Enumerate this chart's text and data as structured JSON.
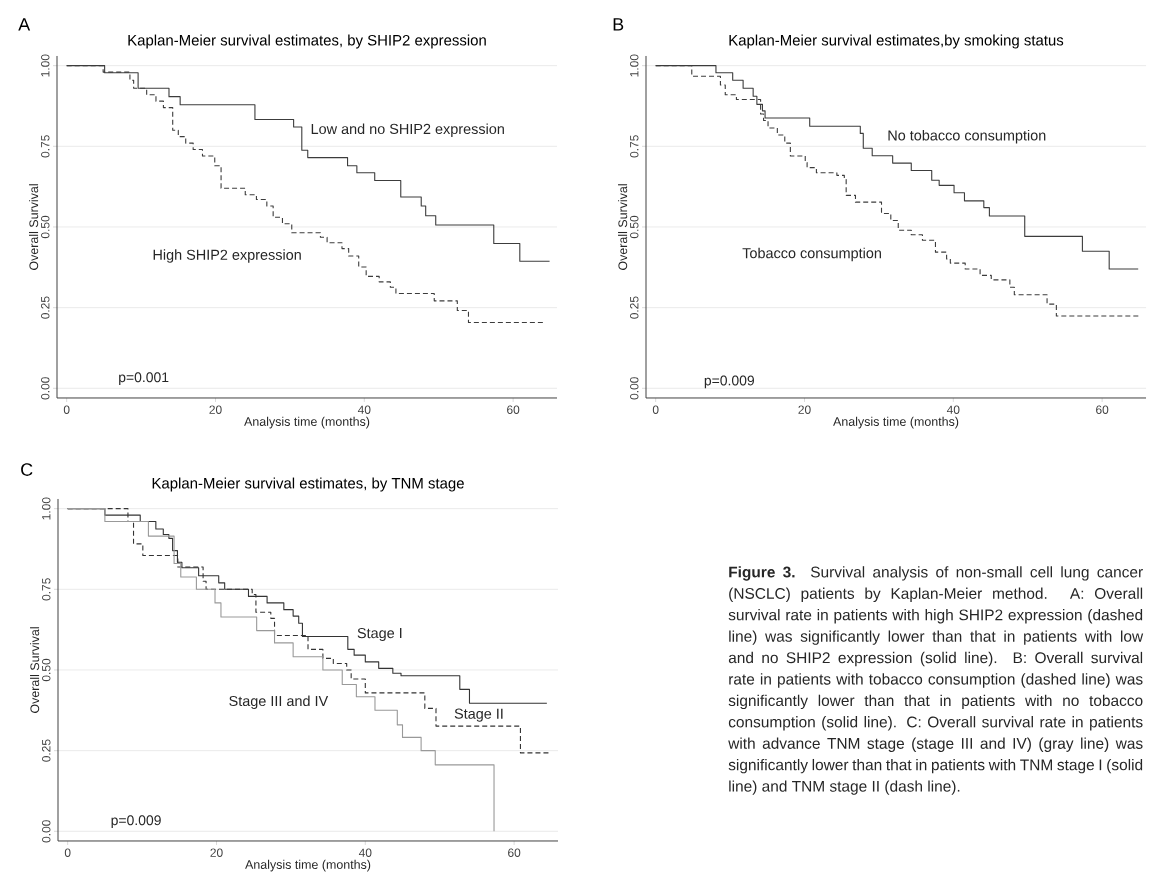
{
  "chart_data": [
    {
      "type": "step",
      "title": "Kaplan-Meier survival estimates, by SHIP2 expression",
      "xlabel": "Analysis time (months)",
      "ylabel": "Overall Survival",
      "xlim": [
        -1.3,
        65.9
      ],
      "ylim": [
        -0.03,
        1.03
      ],
      "xticks": [
        0,
        20,
        40,
        60
      ],
      "yticks": [
        {
          "value": 0,
          "label": "0.00"
        },
        {
          "value": 0.25,
          "label": "0.25"
        },
        {
          "value": 0.5,
          "label": "0.50"
        },
        {
          "value": 0.75,
          "label": "0.75"
        },
        {
          "value": 1,
          "label": "1.00"
        }
      ],
      "grid": "y",
      "annotations": [
        "A",
        "p=0.001"
      ],
      "series": [
        {
          "name": "Low and no SHIP2 expression",
          "color": "#3c3c3c",
          "line_style": "solid",
          "x": [
            0,
            5.1,
            9.6,
            13.75,
            15.25,
            25.3,
            30.5,
            31.6,
            32.4,
            37.75,
            39,
            41.4,
            44.9,
            47.65,
            48.25,
            49.6,
            57.4,
            60.9,
            64.9
          ],
          "values": [
            1,
            0.978,
            0.93,
            0.904,
            0.879,
            0.833,
            0.81,
            0.738,
            0.715,
            0.69,
            0.668,
            0.644,
            0.593,
            0.565,
            0.535,
            0.506,
            0.449,
            0.394,
            0.394
          ]
        },
        {
          "name": "High SHIP2 expression",
          "color": "#3c3c3c",
          "line_style": "dashed",
          "x": [
            0,
            4.9,
            8.5,
            9,
            10.75,
            12,
            13,
            14.25,
            15,
            16,
            17,
            18.25,
            19.9,
            20.75,
            24,
            25.5,
            26.9,
            27.75,
            29,
            30.25,
            34.1,
            35,
            37,
            37.9,
            39.25,
            40.25,
            42,
            43.5,
            44.25,
            49.4,
            52.5,
            54,
            64.25
          ],
          "values": [
            1,
            0.98,
            0.955,
            0.93,
            0.91,
            0.89,
            0.87,
            0.8,
            0.78,
            0.76,
            0.74,
            0.72,
            0.69,
            0.62,
            0.6,
            0.585,
            0.565,
            0.53,
            0.51,
            0.482,
            0.468,
            0.451,
            0.433,
            0.41,
            0.376,
            0.347,
            0.33,
            0.313,
            0.294,
            0.271,
            0.241,
            0.204,
            0.204
          ]
        }
      ]
    },
    {
      "type": "step",
      "title": "Kaplan-Meier survival estimates,by smoking status",
      "xlabel": "Analysis time (months)",
      "ylabel": "Overall Survival",
      "xlim": [
        -1.3,
        65.9
      ],
      "ylim": [
        -0.03,
        1.03
      ],
      "xticks": [
        0,
        20,
        40,
        60
      ],
      "yticks": [
        {
          "value": 0,
          "label": "0.00"
        },
        {
          "value": 0.25,
          "label": "0.25"
        },
        {
          "value": 0.5,
          "label": "0.50"
        },
        {
          "value": 0.75,
          "label": "0.75"
        },
        {
          "value": 1,
          "label": "1.00"
        }
      ],
      "grid": "y",
      "annotations": [
        "B",
        "p=0.009"
      ],
      "series": [
        {
          "name": "No tobacco consumption",
          "color": "#3c3c3c",
          "line_style": "solid",
          "x": [
            0,
            8.1,
            10.35,
            11.75,
            13.1,
            13.6,
            14.35,
            14.7,
            20.7,
            27.5,
            27.9,
            29.1,
            31.85,
            34.35,
            37.1,
            38.1,
            40.1,
            41.5,
            44.1,
            44.85,
            49.6,
            57.35,
            60.95,
            64.85
          ],
          "values": [
            1,
            0.978,
            0.955,
            0.93,
            0.905,
            0.88,
            0.86,
            0.838,
            0.812,
            0.79,
            0.744,
            0.721,
            0.698,
            0.675,
            0.645,
            0.629,
            0.606,
            0.581,
            0.56,
            0.534,
            0.471,
            0.425,
            0.37,
            0.37
          ]
        },
        {
          "name": "Tobacco consumption",
          "color": "#3c3c3c",
          "line_style": "dashed",
          "x": [
            0,
            4.85,
            8.7,
            9.35,
            10.85,
            14.1,
            14.5,
            15.1,
            16.35,
            17.35,
            18.1,
            20.1,
            20.35,
            21.6,
            24.35,
            25.35,
            25.6,
            26.85,
            30.35,
            31.6,
            32.6,
            34.35,
            35.85,
            37.6,
            39.1,
            39.6,
            41.6,
            43.6,
            45.1,
            47.6,
            48.2,
            52.6,
            53.85,
            65.1
          ],
          "values": [
            1,
            0.967,
            0.94,
            0.91,
            0.895,
            0.85,
            0.83,
            0.807,
            0.785,
            0.76,
            0.72,
            0.7,
            0.684,
            0.668,
            0.66,
            0.647,
            0.598,
            0.577,
            0.542,
            0.52,
            0.49,
            0.476,
            0.459,
            0.422,
            0.401,
            0.388,
            0.37,
            0.35,
            0.336,
            0.313,
            0.29,
            0.261,
            0.224,
            0.224
          ]
        }
      ]
    },
    {
      "type": "step",
      "title": "Kaplan-Meier survival estimates, by TNM stage",
      "xlabel": "Analysis time (months)",
      "ylabel": "Overall Survival",
      "xlim": [
        -1.3,
        65.9
      ],
      "ylim": [
        -0.03,
        1.03
      ],
      "xticks": [
        0,
        20,
        40,
        60
      ],
      "yticks": [
        {
          "value": 0,
          "label": "0.00"
        },
        {
          "value": 0.25,
          "label": "0.25"
        },
        {
          "value": 0.5,
          "label": "0.50"
        },
        {
          "value": 0.75,
          "label": "0.75"
        },
        {
          "value": 1,
          "label": "1.00"
        }
      ],
      "grid": "y",
      "annotations": [
        "C",
        "p=0.009",
        "**Figure 3.** Survival analysis of non-small cell lung cancer (NSCLC) patients by Kaplan-Meier method. A: Overall survival rate in patients with high SHIP2 expression (dashed line) was significantly lower than that in patients with low and no SHIP2 expression (solid line). B: Overall survival rate in patients with tobacco consumption (dashed line) was significantly lower than that in patients with no tobacco consumption (solid line). C: Overall survival rate in patients with advance TNM stage (stage III and IV) (gray line) was significantly lower than that in patients with TNM stage I (solid line) and TNM stage II (dash line)."
      ],
      "series": [
        {
          "name": "Stage I",
          "color": "#333333",
          "line_style": "solid",
          "x": [
            0,
            5,
            9.75,
            11.85,
            12.85,
            13.6,
            14.1,
            14.75,
            15.35,
            17.6,
            20.3,
            21.1,
            24.3,
            26.8,
            29.05,
            30.3,
            31.05,
            31.55,
            37.65,
            38.5,
            40,
            41.8,
            43.7,
            44.8,
            52.7,
            54,
            64.4
          ],
          "values": [
            1,
            0.98,
            0.96,
            0.937,
            0.92,
            0.908,
            0.87,
            0.834,
            0.817,
            0.792,
            0.77,
            0.75,
            0.728,
            0.708,
            0.687,
            0.667,
            0.645,
            0.604,
            0.564,
            0.546,
            0.525,
            0.505,
            0.49,
            0.482,
            0.44,
            0.397,
            0.397
          ]
        },
        {
          "name": "Stage II",
          "color": "#333333",
          "line_style": "dashed",
          "x": [
            0,
            8.1,
            8.85,
            10.1,
            14.8,
            18.2,
            18.6,
            24.8,
            25.3,
            27.3,
            27.8,
            32.3,
            34.3,
            35.7,
            37.5,
            38.1,
            40,
            48,
            49.5,
            60.85,
            64.85
          ],
          "values": [
            1,
            0.96,
            0.891,
            0.855,
            0.819,
            0.775,
            0.75,
            0.734,
            0.679,
            0.66,
            0.607,
            0.564,
            0.536,
            0.52,
            0.5,
            0.472,
            0.429,
            0.381,
            0.326,
            0.243,
            0.243
          ]
        },
        {
          "name": "Stage III and IV",
          "color": "#999999",
          "line_style": "solid",
          "x": [
            0,
            5,
            10.85,
            14.3,
            15.2,
            17.3,
            19.8,
            20.6,
            25.4,
            27.8,
            30.3,
            34.3,
            36.9,
            38.8,
            41.3,
            44.3,
            45,
            47.5,
            49.4,
            57.3
          ],
          "values": [
            1,
            0.96,
            0.915,
            0.83,
            0.788,
            0.75,
            0.708,
            0.664,
            0.622,
            0.584,
            0.541,
            0.5,
            0.455,
            0.417,
            0.375,
            0.33,
            0.291,
            0.25,
            0.206,
            0
          ]
        }
      ]
    }
  ]
}
